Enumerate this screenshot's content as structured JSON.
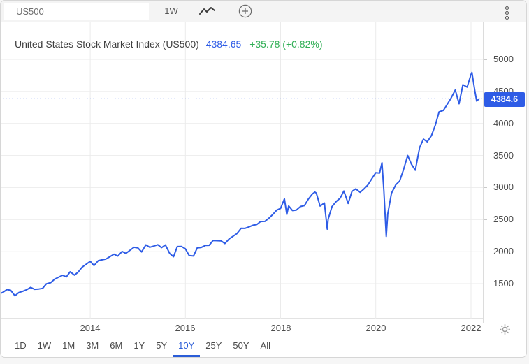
{
  "accent": "#2e5ce6",
  "toolbar": {
    "symbol": "US500",
    "timeframe_label": "1W",
    "chart_type_icon": "line-chart-icon",
    "add_icon": "plus-circle-icon",
    "menu_icon": "kebab-menu-icon"
  },
  "header": {
    "title": "United States Stock Market Index (US500)",
    "price": "4384.65",
    "change": "+35.78 (+0.82%)",
    "price_color": "#2e5ce6",
    "change_color": "#2fae54"
  },
  "price_badge": {
    "label": "4384.6",
    "value": 4384.65,
    "bg": "#2e5ce6"
  },
  "chart_data": {
    "type": "line",
    "title": "United States Stock Market Index (US500)",
    "xlabel": "",
    "ylabel": "",
    "grid": true,
    "legend": "none",
    "line_color": "#2e5ce6",
    "grid_color": "#ebebeb",
    "x_ticks": [
      2014,
      2016,
      2018,
      2020,
      2022
    ],
    "x_tick_labels": [
      "2014",
      "2016",
      "2018",
      "2020",
      "2022"
    ],
    "y_ticks": [
      1500,
      2000,
      2500,
      3000,
      3500,
      4000,
      4500,
      5000
    ],
    "x_range": [
      2012.12,
      2022.25
    ],
    "y_range": [
      955,
      5578
    ],
    "current_price": 4384.65,
    "series": [
      {
        "name": "US500",
        "points": [
          [
            2012.12,
            1350
          ],
          [
            2012.17,
            1366
          ],
          [
            2012.25,
            1408
          ],
          [
            2012.33,
            1397
          ],
          [
            2012.42,
            1310
          ],
          [
            2012.5,
            1362
          ],
          [
            2012.58,
            1379
          ],
          [
            2012.67,
            1407
          ],
          [
            2012.75,
            1441
          ],
          [
            2012.83,
            1412
          ],
          [
            2012.92,
            1416
          ],
          [
            2013.0,
            1426
          ],
          [
            2013.08,
            1498
          ],
          [
            2013.17,
            1515
          ],
          [
            2013.25,
            1569
          ],
          [
            2013.33,
            1598
          ],
          [
            2013.42,
            1631
          ],
          [
            2013.5,
            1606
          ],
          [
            2013.58,
            1686
          ],
          [
            2013.67,
            1633
          ],
          [
            2013.75,
            1682
          ],
          [
            2013.83,
            1757
          ],
          [
            2013.92,
            1806
          ],
          [
            2014.0,
            1848
          ],
          [
            2014.08,
            1783
          ],
          [
            2014.17,
            1859
          ],
          [
            2014.25,
            1872
          ],
          [
            2014.33,
            1884
          ],
          [
            2014.42,
            1924
          ],
          [
            2014.5,
            1960
          ],
          [
            2014.58,
            1931
          ],
          [
            2014.67,
            2003
          ],
          [
            2014.75,
            1972
          ],
          [
            2014.83,
            2018
          ],
          [
            2014.92,
            2068
          ],
          [
            2015.0,
            2059
          ],
          [
            2015.08,
            1995
          ],
          [
            2015.17,
            2105
          ],
          [
            2015.25,
            2068
          ],
          [
            2015.33,
            2086
          ],
          [
            2015.42,
            2107
          ],
          [
            2015.5,
            2063
          ],
          [
            2015.58,
            2104
          ],
          [
            2015.67,
            1972
          ],
          [
            2015.75,
            1920
          ],
          [
            2015.83,
            2079
          ],
          [
            2015.92,
            2080
          ],
          [
            2016.0,
            2044
          ],
          [
            2016.08,
            1940
          ],
          [
            2016.17,
            1932
          ],
          [
            2016.25,
            2060
          ],
          [
            2016.33,
            2065
          ],
          [
            2016.42,
            2097
          ],
          [
            2016.5,
            2099
          ],
          [
            2016.58,
            2174
          ],
          [
            2016.67,
            2171
          ],
          [
            2016.75,
            2168
          ],
          [
            2016.83,
            2126
          ],
          [
            2016.92,
            2199
          ],
          [
            2017.0,
            2239
          ],
          [
            2017.08,
            2279
          ],
          [
            2017.17,
            2364
          ],
          [
            2017.25,
            2363
          ],
          [
            2017.33,
            2384
          ],
          [
            2017.42,
            2412
          ],
          [
            2017.5,
            2423
          ],
          [
            2017.58,
            2470
          ],
          [
            2017.67,
            2472
          ],
          [
            2017.75,
            2519
          ],
          [
            2017.83,
            2575
          ],
          [
            2017.92,
            2648
          ],
          [
            2018.0,
            2674
          ],
          [
            2018.08,
            2824
          ],
          [
            2018.13,
            2581
          ],
          [
            2018.17,
            2714
          ],
          [
            2018.25,
            2641
          ],
          [
            2018.33,
            2648
          ],
          [
            2018.42,
            2705
          ],
          [
            2018.5,
            2718
          ],
          [
            2018.58,
            2816
          ],
          [
            2018.67,
            2902
          ],
          [
            2018.72,
            2930
          ],
          [
            2018.75,
            2914
          ],
          [
            2018.83,
            2712
          ],
          [
            2018.92,
            2760
          ],
          [
            2018.98,
            2351
          ],
          [
            2019.0,
            2507
          ],
          [
            2019.08,
            2704
          ],
          [
            2019.17,
            2784
          ],
          [
            2019.25,
            2834
          ],
          [
            2019.33,
            2946
          ],
          [
            2019.42,
            2752
          ],
          [
            2019.5,
            2942
          ],
          [
            2019.58,
            2980
          ],
          [
            2019.67,
            2926
          ],
          [
            2019.75,
            2977
          ],
          [
            2019.83,
            3038
          ],
          [
            2019.92,
            3141
          ],
          [
            2020.0,
            3231
          ],
          [
            2020.08,
            3226
          ],
          [
            2020.13,
            3386
          ],
          [
            2020.17,
            2954
          ],
          [
            2020.22,
            2237
          ],
          [
            2020.25,
            2585
          ],
          [
            2020.33,
            2912
          ],
          [
            2020.42,
            3044
          ],
          [
            2020.5,
            3100
          ],
          [
            2020.58,
            3271
          ],
          [
            2020.67,
            3500
          ],
          [
            2020.75,
            3363
          ],
          [
            2020.83,
            3270
          ],
          [
            2020.92,
            3622
          ],
          [
            2021.0,
            3756
          ],
          [
            2021.08,
            3714
          ],
          [
            2021.17,
            3811
          ],
          [
            2021.25,
            3973
          ],
          [
            2021.33,
            4181
          ],
          [
            2021.42,
            4204
          ],
          [
            2021.5,
            4297
          ],
          [
            2021.58,
            4395
          ],
          [
            2021.67,
            4523
          ],
          [
            2021.75,
            4308
          ],
          [
            2021.83,
            4605
          ],
          [
            2021.92,
            4567
          ],
          [
            2022.0,
            4766
          ],
          [
            2022.02,
            4796
          ],
          [
            2022.08,
            4516
          ],
          [
            2022.12,
            4349
          ],
          [
            2022.17,
            4384.65
          ]
        ]
      }
    ]
  },
  "range_selector": {
    "options": [
      "1D",
      "1W",
      "1M",
      "3M",
      "6M",
      "1Y",
      "5Y",
      "10Y",
      "25Y",
      "50Y",
      "All"
    ],
    "active": "10Y",
    "active_color": "#2b5dd7"
  },
  "settings_icon": "gear-icon"
}
